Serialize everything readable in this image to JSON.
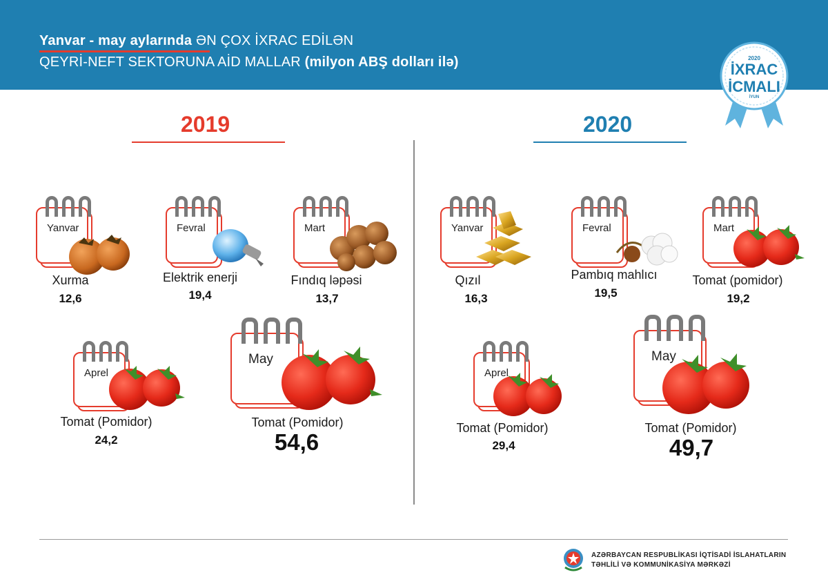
{
  "header": {
    "line1_bold": "Yanvar - may  aylarında",
    "line1_rest": " ƏN ÇOX İXRAC EDİLƏN",
    "line2_rest": "QEYRİ-NEFT SEKTORUNA AİD MALLAR ",
    "line2_bold": "(milyon ABŞ dolları ilə)"
  },
  "badge": {
    "year": "2020",
    "line1": "İXRAC",
    "line2": "İCMALI",
    "month": "İYUN"
  },
  "year_2019": {
    "title": "2019",
    "items": [
      {
        "month": "Yanvar",
        "product": "Xurma",
        "value": "12,6"
      },
      {
        "month": "Fevral",
        "product": "Elektrik enerji",
        "value": "19,4"
      },
      {
        "month": "Mart",
        "product": "Fındıq ləpəsi",
        "value": "13,7"
      },
      {
        "month": "Aprel",
        "product": "Tomat (Pomidor)",
        "value": "24,2"
      },
      {
        "month": "May",
        "product": "Tomat (Pomidor)",
        "value": "54,6"
      }
    ]
  },
  "year_2020": {
    "title": "2020",
    "items": [
      {
        "month": "Yanvar",
        "product": "Qızıl",
        "value": "16,3"
      },
      {
        "month": "Fevral",
        "product": "Pambıq mahlıcı",
        "value": "19,5"
      },
      {
        "month": "Mart",
        "product": "Tomat (pomidor)",
        "value": "19,2"
      },
      {
        "month": "Aprel",
        "product": "Tomat (Pomidor)",
        "value": "29,4"
      },
      {
        "month": "May",
        "product": "Tomat (Pomidor)",
        "value": "49,7"
      }
    ]
  },
  "footer": {
    "line1": "AZƏRBAYCAN RESPUBLİKASI İQTİSADİ İSLAHATLARIN",
    "line2": "TƏHLİLİ VƏ KOMMUNİKASİYA MƏRKƏZİ"
  },
  "colors": {
    "header_blue": "#1f7fb1",
    "accent_red": "#e53b2c",
    "divider_gray": "#8a8a8a"
  }
}
